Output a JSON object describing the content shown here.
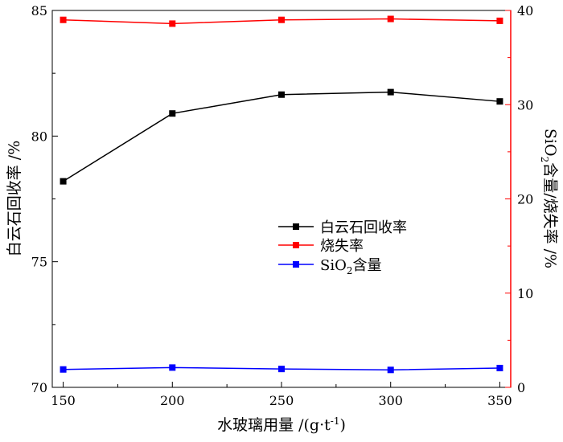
{
  "chart_data": {
    "type": "line",
    "xlabel": "水玻璃用量 /(g·t",
    "xlabel_sup": "-1",
    "xlabel_close": ")",
    "ylabel_left": "白云石回收率 /%",
    "ylabel_right_pre": "SiO",
    "ylabel_right_sub": "2",
    "ylabel_right_post": "含量/烧失率 /%",
    "x": [
      150,
      200,
      250,
      300,
      350
    ],
    "xlim": [
      145,
      355
    ],
    "ylim_left": [
      70,
      85
    ],
    "ylim_right": [
      0,
      40
    ],
    "x_ticks": [
      "150",
      "200",
      "250",
      "300",
      "350"
    ],
    "y_ticks_left": [
      "70",
      "75",
      "80",
      "85"
    ],
    "y_ticks_right": [
      "0",
      "10",
      "20",
      "30",
      "40"
    ],
    "series": [
      {
        "name": "白云石回收率",
        "axis": "left",
        "color": "#000000",
        "values": [
          78.2,
          80.9,
          81.65,
          81.75,
          81.38
        ]
      },
      {
        "name": "烧失率",
        "axis": "right",
        "color": "#ff0000",
        "values": [
          39.0,
          38.6,
          39.0,
          39.1,
          38.9
        ]
      },
      {
        "name": "SiO2含量",
        "name_parts": [
          "SiO",
          "2",
          "含量"
        ],
        "axis": "right",
        "color": "#0000ff",
        "values": [
          1.9,
          2.1,
          1.95,
          1.85,
          2.05
        ]
      }
    ],
    "legend_position": "center-right",
    "grid": false
  }
}
